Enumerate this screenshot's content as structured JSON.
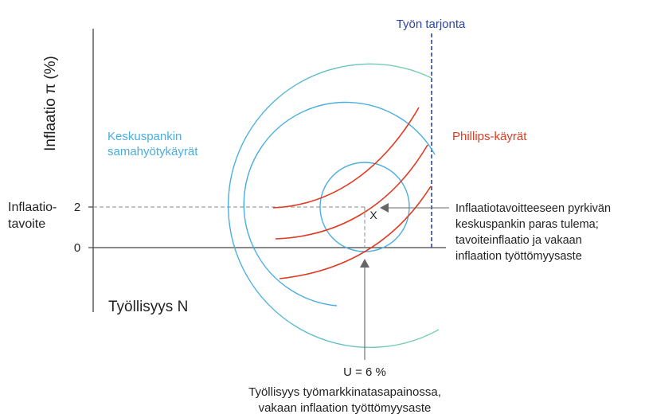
{
  "colors": {
    "axis": "#444444",
    "indifference_curve": "#4aaee0",
    "phillips_curve": "#e03a22",
    "labour_supply": "#2b45a4",
    "guide": "#888888"
  },
  "y_axis_label": "Inflaatio π (%)",
  "x_axis_label": "Työllisyys N",
  "target_label": [
    "Inflaatio-",
    "tavoite"
  ],
  "y_ticks": [
    "2",
    "0"
  ],
  "labour_supply_label": "Työn tarjonta",
  "cb_curves_label": [
    "Keskuspankin",
    "samahyötykäyrät"
  ],
  "phillips_label": "Phillips-käyrät",
  "point_label": "X",
  "best_outcome_annotation": [
    "Inflaatiotavoitteeseen pyrkivän",
    "keskuspankin paras tulema;",
    "tavoiteinflaatio ja vakaan",
    "inflaation työttömyysaste"
  ],
  "unemployment_label": "U = 6 %",
  "equilibrium_annotation": [
    "Työllisyys työmarkkinatasapainossa,",
    "vakaan inflaation työttömyysaste"
  ]
}
